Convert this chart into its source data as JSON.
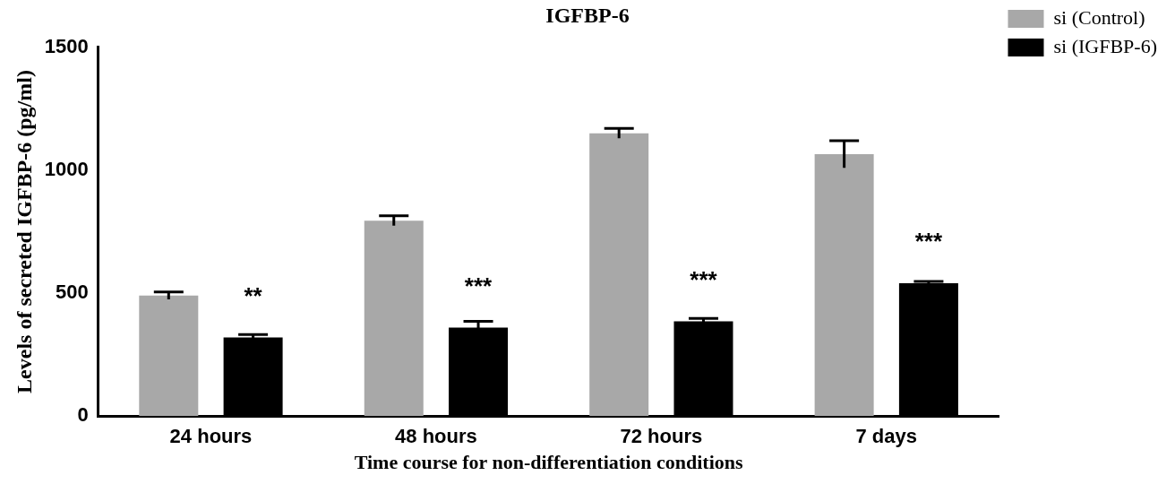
{
  "chart_data": {
    "type": "bar",
    "title": "IGFBP-6",
    "xlabel": "Time course for non-differentiation conditions",
    "ylabel": "Levels of secreted IGFBP-6 (pg/ml)",
    "categories": [
      "24 hours",
      "48 hours",
      "72 hours",
      "7 days"
    ],
    "series": [
      {
        "name": "si (Control)",
        "color": "#a8a8a8",
        "values": [
          490,
          795,
          1150,
          1065
        ],
        "errors": [
          15,
          20,
          20,
          55
        ]
      },
      {
        "name": "si (IGFBP-6)",
        "color": "#000000",
        "values": [
          320,
          360,
          385,
          540
        ],
        "errors": [
          12,
          25,
          12,
          8
        ]
      }
    ],
    "ylim": [
      0,
      1500
    ],
    "yticks": [
      0,
      500,
      1000,
      1500
    ],
    "grid": false,
    "legend": "top right",
    "annotations": [
      "**",
      "***",
      "***",
      "***"
    ]
  }
}
